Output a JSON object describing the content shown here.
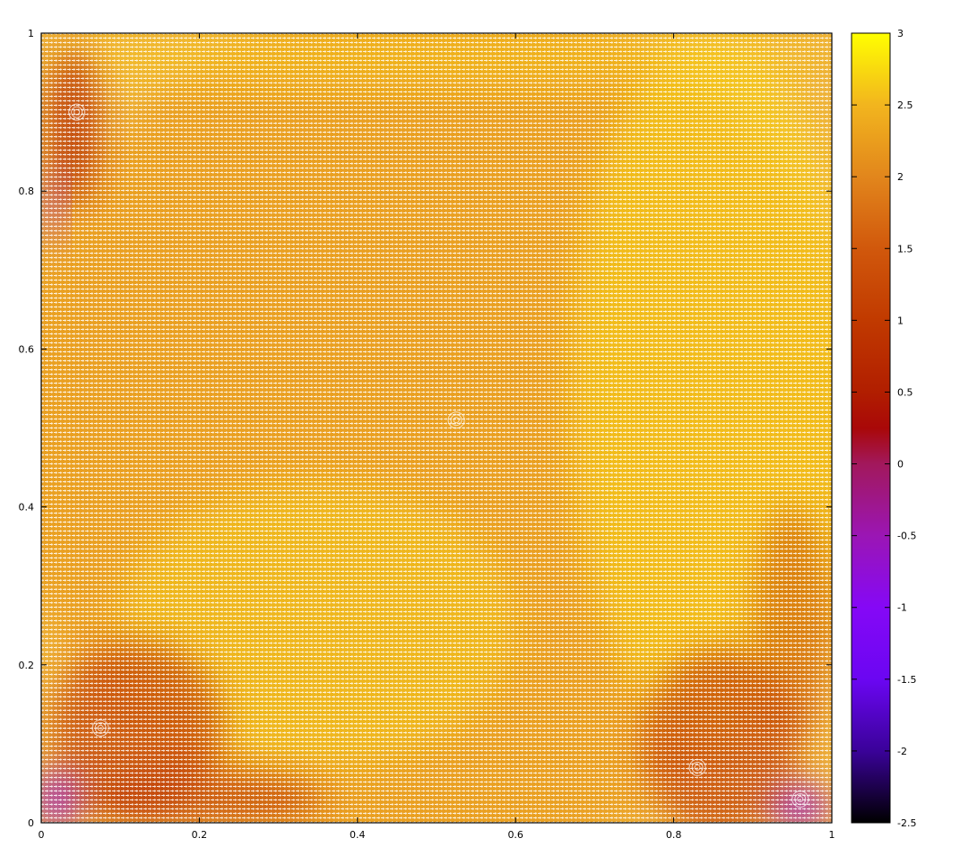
{
  "chart_data": [
    {
      "type": "heatmap",
      "subtype": "vector-field",
      "title": "",
      "xlabel": "",
      "ylabel": "",
      "xlim": [
        0,
        1
      ],
      "ylim": [
        0,
        1
      ],
      "xticks": [
        "0",
        "0.2",
        "0.4",
        "0.6",
        "0.8",
        "1"
      ],
      "yticks": [
        "0",
        "0.2",
        "0.4",
        "0.6",
        "0.8",
        "1"
      ],
      "grid": false,
      "legend": "none",
      "vortices": [
        {
          "x": 0.525,
          "y": 0.51
        },
        {
          "x": 0.045,
          "y": 0.9
        },
        {
          "x": 0.075,
          "y": 0.12
        },
        {
          "x": 0.83,
          "y": 0.07
        },
        {
          "x": 0.96,
          "y": 0.03
        }
      ]
    },
    {
      "type": "colorbar",
      "placement": "right",
      "range": [
        -2.5,
        3
      ],
      "tick_labels": [
        "3",
        "2.5",
        "2",
        "1.5",
        "1",
        "0.5",
        "0",
        "-0.5",
        "-1",
        "-1.5",
        "-2",
        "-2.5"
      ],
      "colormap": [
        {
          "value": 3.0,
          "color": "#ffff00"
        },
        {
          "value": 2.5,
          "color": "#f2b51e"
        },
        {
          "value": 2.0,
          "color": "#e2861c"
        },
        {
          "value": 1.5,
          "color": "#d1580c"
        },
        {
          "value": 1.0,
          "color": "#c13a00"
        },
        {
          "value": 0.5,
          "color": "#b11e00"
        },
        {
          "value": 0.25,
          "color": "#a90808"
        },
        {
          "value": 0.0,
          "color": "#a2185c"
        },
        {
          "value": -0.5,
          "color": "#9b16b4"
        },
        {
          "value": -1.0,
          "color": "#8508f6"
        },
        {
          "value": -1.5,
          "color": "#6b06f2"
        },
        {
          "value": -2.0,
          "color": "#3a0299"
        },
        {
          "value": -2.5,
          "color": "#000000"
        }
      ]
    }
  ]
}
